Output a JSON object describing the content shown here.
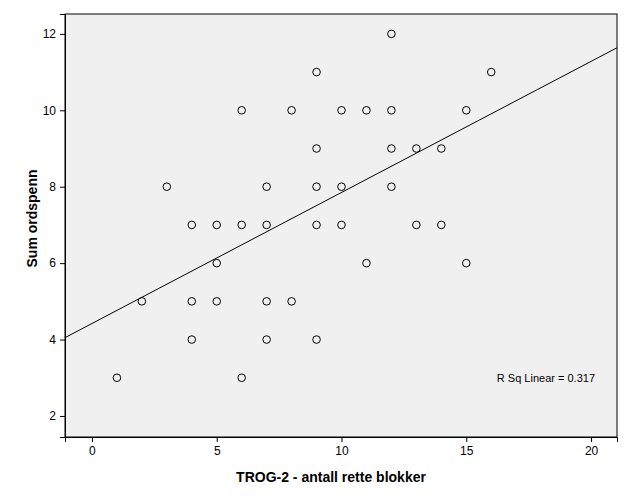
{
  "chart_data": {
    "type": "scatter",
    "x_label": "TROG-2 - antall rette blokker",
    "y_label": "Sum ordspenn",
    "x": [
      1,
      2,
      3,
      4,
      4,
      4,
      5,
      5,
      5,
      6,
      6,
      6,
      7,
      7,
      7,
      7,
      8,
      8,
      9,
      9,
      9,
      9,
      9,
      10,
      10,
      10,
      11,
      11,
      12,
      12,
      12,
      12,
      13,
      13,
      14,
      14,
      15,
      15,
      16
    ],
    "values": [
      3,
      5,
      8,
      7,
      5,
      4,
      7,
      6,
      5,
      10,
      7,
      3,
      8,
      7,
      5,
      4,
      10,
      5,
      11,
      9,
      8,
      7,
      4,
      10,
      8,
      7,
      10,
      6,
      12,
      10,
      9,
      8,
      9,
      7,
      9,
      7,
      10,
      6,
      11
    ],
    "color": "#000000",
    "marker": "circle",
    "fit": {
      "intercept": 4.42,
      "slope": 0.343
    },
    "annotations": [
      {
        "text": "R Sq Linear = 0.317"
      }
    ],
    "xlim": [
      -1.08,
      21.04
    ],
    "ylim": [
      1.45,
      12.52
    ],
    "xticks": [
      0,
      5,
      10,
      15,
      20
    ],
    "yticks": [
      2,
      4,
      6,
      8,
      10,
      12
    ],
    "grid": false
  }
}
